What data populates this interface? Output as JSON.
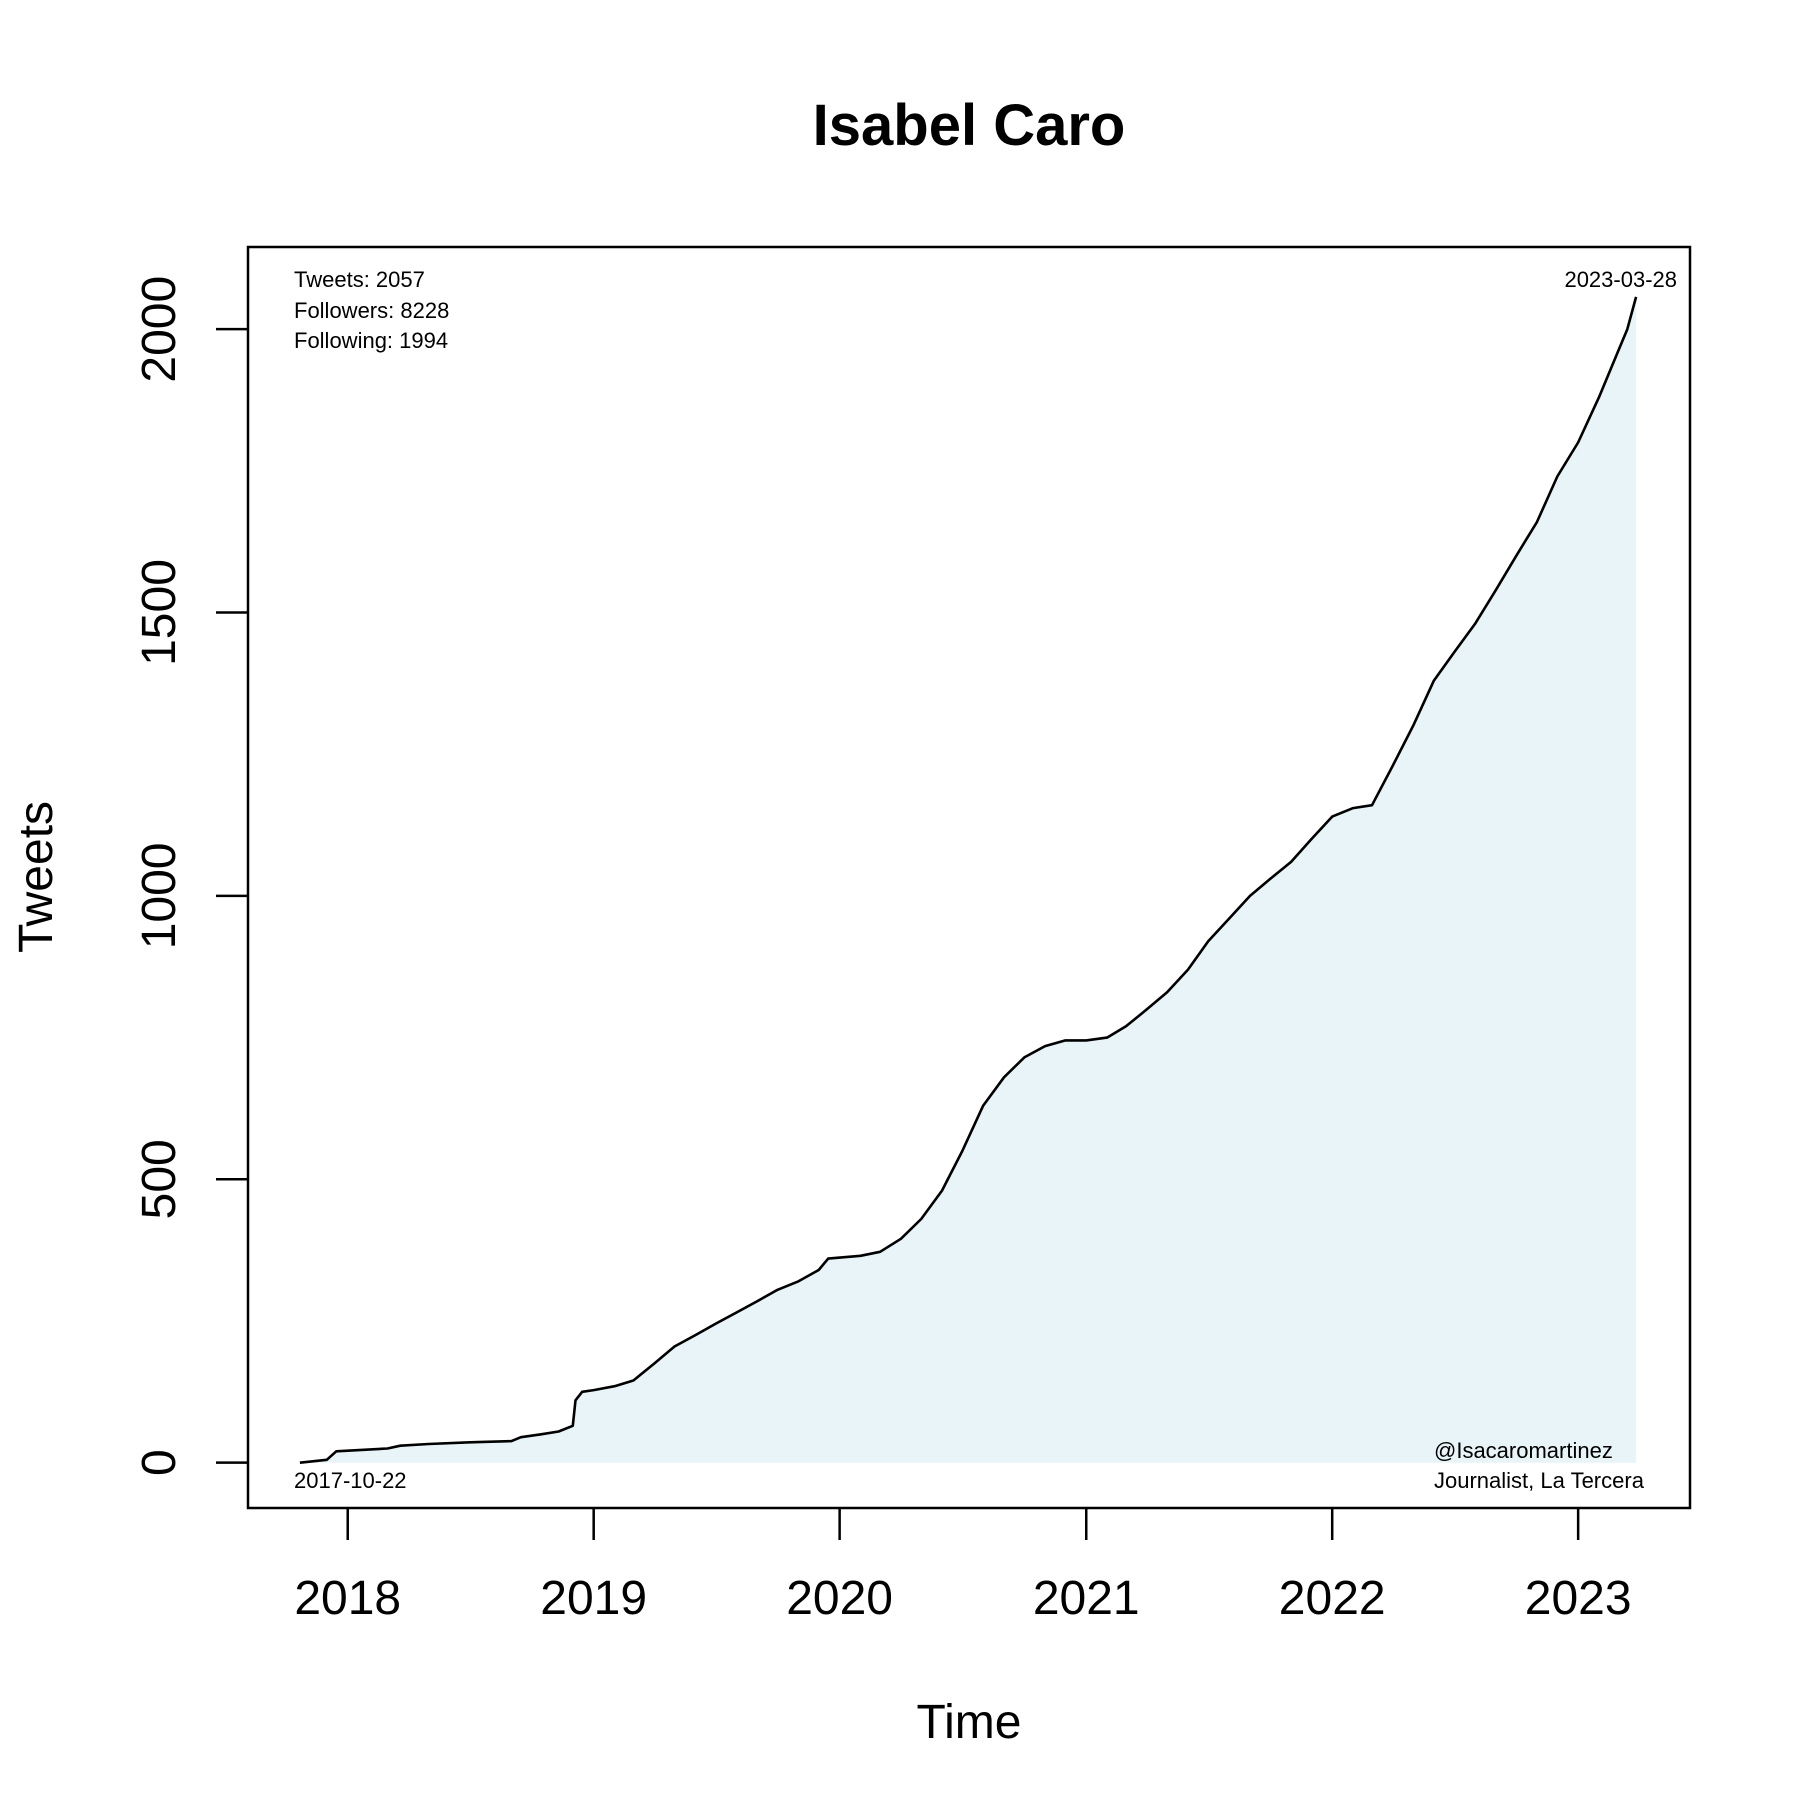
{
  "chart_data": {
    "type": "area",
    "title": "Isabel Caro",
    "xlabel": "Time",
    "ylabel": "Tweets",
    "x_ticks": [
      "2018",
      "2019",
      "2020",
      "2021",
      "2022",
      "2023"
    ],
    "y_ticks": [
      0,
      500,
      1000,
      1500,
      2000
    ],
    "xlim": [
      "2017-08-06",
      "2023-06-16"
    ],
    "ylim": [
      -80,
      2145
    ],
    "grid": false,
    "fill_color": "#e8f4f8",
    "line_color": "#000000",
    "stats": {
      "tweets": "Tweets: 2057",
      "followers": "Followers: 8228",
      "following": "Following: 1994"
    },
    "start_date_label": "2017-10-22",
    "end_date_label": "2023-03-28",
    "handle": "@Isacaromartinez",
    "bio": "Journalist, La Tercera",
    "series": [
      {
        "x": [
          "2017-10-22",
          "2017-12-01",
          "2017-12-15",
          "2018-03-01",
          "2018-03-20",
          "2018-05-01",
          "2018-07-01",
          "2018-09-01",
          "2018-09-15",
          "2018-10-15",
          "2018-11-10",
          "2018-12-01",
          "2018-12-05",
          "2018-12-15",
          "2019-01-01",
          "2019-02-01",
          "2019-03-01",
          "2019-04-01",
          "2019-05-01",
          "2019-06-01",
          "2019-07-01",
          "2019-08-01",
          "2019-09-01",
          "2019-10-01",
          "2019-11-01",
          "2019-12-01",
          "2019-12-15",
          "2020-02-01",
          "2020-03-01",
          "2020-04-01",
          "2020-05-01",
          "2020-06-01",
          "2020-07-01",
          "2020-08-01",
          "2020-09-01",
          "2020-10-01",
          "2020-11-01",
          "2020-12-01",
          "2021-01-01",
          "2021-02-01",
          "2021-03-01",
          "2021-04-01",
          "2021-05-01",
          "2021-06-01",
          "2021-07-01",
          "2021-08-01",
          "2021-09-01",
          "2021-10-01",
          "2021-11-01",
          "2021-12-01",
          "2022-01-01",
          "2022-02-01",
          "2022-03-01",
          "2022-04-01",
          "2022-05-01",
          "2022-06-01",
          "2022-07-01",
          "2022-08-01",
          "2022-09-01",
          "2022-10-01",
          "2022-11-01",
          "2022-12-01",
          "2023-01-01",
          "2023-02-01",
          "2023-03-01",
          "2023-03-15",
          "2023-03-28"
        ],
        "y": [
          0,
          5,
          20,
          25,
          30,
          33,
          36,
          38,
          45,
          50,
          55,
          65,
          110,
          125,
          128,
          135,
          145,
          175,
          205,
          225,
          245,
          265,
          285,
          305,
          320,
          340,
          360,
          365,
          372,
          395,
          430,
          480,
          550,
          630,
          680,
          715,
          735,
          745,
          745,
          750,
          770,
          800,
          830,
          870,
          920,
          960,
          1000,
          1030,
          1060,
          1100,
          1140,
          1155,
          1160,
          1230,
          1300,
          1380,
          1430,
          1480,
          1540,
          1600,
          1660,
          1740,
          1800,
          1880,
          1960,
          2000,
          2057
        ]
      }
    ]
  }
}
